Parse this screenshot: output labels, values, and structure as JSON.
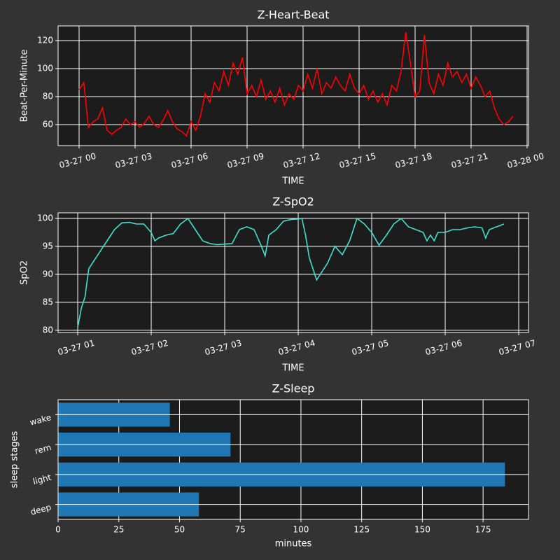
{
  "chart_data": [
    {
      "type": "line",
      "title": "Z-Heart-Beat",
      "xlabel": "TIME",
      "ylabel": "Beat-Per-Minute",
      "color": "#ff0000",
      "grid": true,
      "x": [
        0,
        0.25,
        0.5,
        0.75,
        1,
        1.25,
        1.5,
        1.75,
        2,
        2.25,
        2.5,
        2.75,
        3,
        3.25,
        3.5,
        3.75,
        4,
        4.25,
        4.5,
        4.75,
        5,
        5.25,
        5.5,
        5.75,
        6,
        6.25,
        6.5,
        6.75,
        7,
        7.25,
        7.5,
        7.75,
        8,
        8.25,
        8.5,
        8.75,
        9,
        9.25,
        9.5,
        9.75,
        10,
        10.25,
        10.5,
        10.75,
        11,
        11.25,
        11.5,
        11.75,
        12,
        12.25,
        12.5,
        12.75,
        13,
        13.25,
        13.5,
        13.75,
        14,
        14.25,
        14.5,
        14.75,
        15,
        15.25,
        15.5,
        15.75,
        16,
        16.25,
        16.5,
        16.75,
        17,
        17.25,
        17.5,
        17.75,
        18,
        18.25,
        18.5,
        18.75,
        19,
        19.25,
        19.5,
        19.75,
        20,
        20.25,
        20.5,
        20.75,
        21,
        21.25,
        21.5,
        21.75,
        22,
        22.25,
        22.5,
        22.75,
        23,
        23.25
      ],
      "values": [
        85,
        90,
        58,
        62,
        64,
        72,
        56,
        53,
        56,
        58,
        64,
        60,
        62,
        58,
        61,
        66,
        60,
        58,
        63,
        70,
        62,
        57,
        55,
        52,
        62,
        56,
        66,
        82,
        76,
        90,
        84,
        98,
        88,
        104,
        96,
        108,
        82,
        88,
        80,
        92,
        78,
        84,
        76,
        86,
        74,
        82,
        78,
        88,
        84,
        96,
        86,
        100,
        82,
        90,
        86,
        94,
        88,
        84,
        96,
        86,
        82,
        88,
        78,
        84,
        76,
        82,
        74,
        88,
        84,
        98,
        126,
        104,
        80,
        84,
        124,
        90,
        82,
        96,
        88,
        104,
        94,
        98,
        90,
        96,
        86,
        94,
        88,
        80,
        84,
        72,
        64,
        60,
        62,
        66
      ],
      "xlim": [
        -1.125,
        24.075
      ],
      "ylim": [
        45,
        130.5
      ],
      "xticks": [
        {
          "value": 0,
          "label": "03-27 00"
        },
        {
          "value": 3,
          "label": "03-27 03"
        },
        {
          "value": 6,
          "label": "03-27 06"
        },
        {
          "value": 9,
          "label": "03-27 09"
        },
        {
          "value": 12,
          "label": "03-27 12"
        },
        {
          "value": 15,
          "label": "03-27 15"
        },
        {
          "value": 18,
          "label": "03-27 18"
        },
        {
          "value": 21,
          "label": "03-27 21"
        },
        {
          "value": 24,
          "label": "03-28 00"
        }
      ],
      "yticks": [
        60,
        80,
        100,
        120
      ]
    },
    {
      "type": "line",
      "title": "Z-SpO2",
      "xlabel": "TIME",
      "ylabel": "SpO2",
      "color": "#40e0d0",
      "grid": true,
      "x": [
        1.0,
        1.05,
        1.1,
        1.15,
        1.2,
        1.3,
        1.4,
        1.5,
        1.6,
        1.7,
        1.8,
        1.9,
        2.0,
        2.05,
        2.1,
        2.2,
        2.3,
        2.4,
        2.5,
        2.6,
        2.7,
        2.8,
        2.9,
        3.0,
        3.1,
        3.2,
        3.3,
        3.4,
        3.5,
        3.55,
        3.6,
        3.7,
        3.8,
        3.9,
        4.0,
        4.05,
        4.1,
        4.15,
        4.2,
        4.25,
        4.3,
        4.4,
        4.5,
        4.6,
        4.7,
        4.8,
        4.9,
        5.0,
        5.1,
        5.2,
        5.3,
        5.4,
        5.5,
        5.6,
        5.7,
        5.75,
        5.8,
        5.85,
        5.9,
        6.0,
        6.1,
        6.2,
        6.3,
        6.4,
        6.5,
        6.55,
        6.6,
        6.7,
        6.8
      ],
      "values": [
        80.5,
        84,
        86,
        91,
        92,
        94,
        96,
        98,
        99.2,
        99.3,
        99,
        99,
        97.5,
        96,
        96.5,
        97,
        97.3,
        99,
        100,
        98,
        96,
        95.5,
        95.3,
        95.4,
        95.5,
        98,
        98.5,
        98,
        95,
        93.3,
        97,
        98,
        99.5,
        99.8,
        99.9,
        100,
        97,
        93,
        91,
        89,
        90,
        92,
        95,
        93.5,
        96,
        100,
        99,
        97.5,
        95.2,
        97,
        99,
        100,
        98.5,
        98,
        97.5,
        96,
        97,
        96,
        97.5,
        97.5,
        98,
        98,
        98.3,
        98.5,
        98.3,
        96.5,
        98,
        98.5,
        99
      ],
      "xlim": [
        0.733,
        7.133
      ],
      "ylim": [
        79.6,
        101
      ],
      "xticks": [
        {
          "value": 1,
          "label": "03-27 01"
        },
        {
          "value": 2,
          "label": "03-27 02"
        },
        {
          "value": 3,
          "label": "03-27 03"
        },
        {
          "value": 4,
          "label": "03-27 04"
        },
        {
          "value": 5,
          "label": "03-27 05"
        },
        {
          "value": 6,
          "label": "03-27 06"
        },
        {
          "value": 7,
          "label": "03-27 07"
        }
      ],
      "yticks": [
        80,
        85,
        90,
        95,
        100
      ]
    },
    {
      "type": "barh",
      "title": "Z-Sleep",
      "xlabel": "minutes",
      "ylabel": "sleep stages",
      "color": "#1f77b4",
      "grid": true,
      "categories": [
        "deep",
        "light",
        "rem",
        "wake"
      ],
      "values": [
        58,
        184,
        71,
        46
      ],
      "xlim": [
        0,
        193.7
      ],
      "xticks": [
        0,
        25,
        50,
        75,
        100,
        125,
        150,
        175
      ]
    }
  ]
}
